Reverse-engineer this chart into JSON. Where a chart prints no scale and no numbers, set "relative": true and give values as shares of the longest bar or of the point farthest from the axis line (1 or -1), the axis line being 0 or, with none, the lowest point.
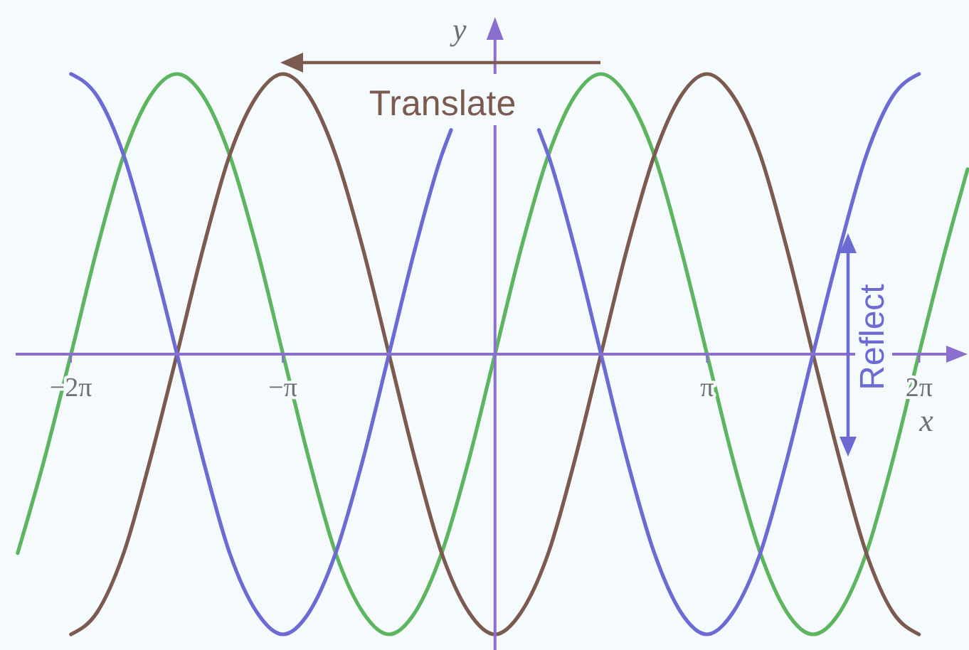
{
  "chart_data": {
    "type": "line",
    "xlabel": "x",
    "ylabel": "y",
    "relative": true,
    "xlim": [
      -7.1,
      7.0
    ],
    "xticks": [
      {
        "value": -6.283,
        "label": "−2π"
      },
      {
        "value": -3.142,
        "label": "−π"
      },
      {
        "value": 3.142,
        "label": "π"
      },
      {
        "value": 6.283,
        "label": "2π"
      }
    ],
    "ref_lines": [
      {
        "axis": "x",
        "value": 0,
        "color": "#8b6fcf"
      }
    ],
    "annotations": [
      "Translate",
      "Reflect"
    ],
    "series": [
      {
        "color": "#5db560",
        "x": [
          -7.07,
          -6.68,
          -6.28,
          -5.89,
          -5.5,
          -5.11,
          -4.71,
          -4.32,
          -3.93,
          -3.53,
          -3.14,
          -2.75,
          -2.36,
          -1.96,
          -1.57,
          -1.18,
          -0.79,
          -0.39,
          0,
          0.39,
          0.79,
          1.18,
          1.57,
          1.96,
          2.36,
          2.75,
          3.14,
          3.53,
          3.93,
          4.32,
          4.71,
          5.11,
          5.5,
          5.89,
          6.28,
          6.68,
          7.0
        ],
        "values": [
          -0.71,
          -0.38,
          0,
          0.38,
          0.71,
          0.92,
          1,
          0.92,
          0.71,
          0.38,
          0,
          -0.38,
          -0.71,
          -0.92,
          -1,
          -0.92,
          -0.71,
          -0.38,
          0,
          0.38,
          0.71,
          0.92,
          1,
          0.92,
          0.71,
          0.38,
          0,
          -0.38,
          -0.71,
          -0.92,
          -1,
          -0.92,
          -0.71,
          -0.38,
          0,
          0.38,
          0.66
        ]
      },
      {
        "color": "#7b5b50",
        "x": [
          -6.28,
          -5.89,
          -5.5,
          -5.11,
          -4.71,
          -4.32,
          -3.93,
          -3.53,
          -3.14,
          -2.75,
          -2.36,
          -1.96,
          -1.57,
          -1.18,
          -0.79,
          -0.39,
          0,
          0.39,
          0.79,
          1.18,
          1.57,
          1.96,
          2.36,
          2.75,
          3.14,
          3.53,
          3.93,
          4.32,
          4.71,
          5.11,
          5.5,
          5.89,
          6.28
        ],
        "values": [
          -1,
          -0.92,
          -0.71,
          -0.38,
          0,
          0.38,
          0.71,
          0.92,
          1,
          0.92,
          0.71,
          0.38,
          0,
          -0.38,
          -0.71,
          -0.92,
          -1,
          -0.92,
          -0.71,
          -0.38,
          0,
          0.38,
          0.71,
          0.92,
          1,
          0.92,
          0.71,
          0.38,
          0,
          -0.38,
          -0.71,
          -0.92,
          -1
        ]
      },
      {
        "color": "#6b6bd3",
        "x": [
          -6.28,
          -5.89,
          -5.5,
          -5.11,
          -4.71,
          -4.32,
          -3.93,
          -3.53,
          -3.14,
          -2.75,
          -2.36,
          -1.96,
          -1.57,
          -1.18,
          -0.79,
          -0.65,
          0,
          0.65,
          0.79,
          1.18,
          1.57,
          1.96,
          2.36,
          2.75,
          3.14,
          3.53,
          3.93,
          4.32,
          4.71,
          5.11,
          5.5,
          5.89,
          6.28
        ],
        "values": [
          1,
          0.92,
          0.71,
          0.38,
          0,
          -0.38,
          -0.71,
          -0.92,
          -1,
          -0.92,
          -0.71,
          -0.38,
          0,
          0.38,
          0.71,
          0.8,
          null,
          0.8,
          0.71,
          0.38,
          0,
          -0.38,
          -0.71,
          -0.92,
          -1,
          -0.92,
          -0.71,
          -0.38,
          0,
          0.38,
          0.71,
          0.92,
          1
        ]
      }
    ]
  }
}
